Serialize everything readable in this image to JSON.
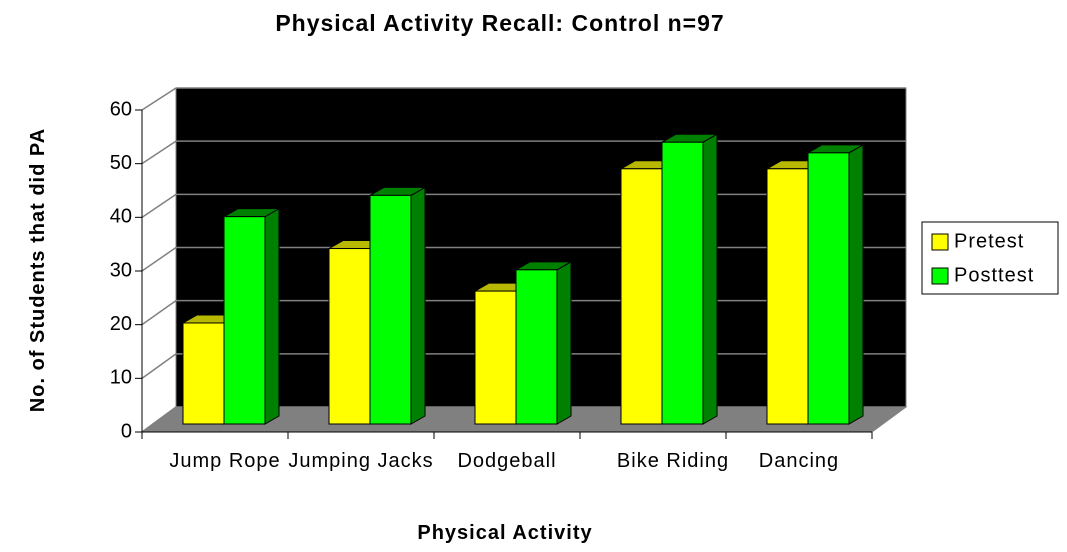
{
  "chart_data": {
    "type": "bar3d",
    "title": "Physical Activity Recall: Control n=97",
    "x_label": "Physical Activity",
    "y_label": "No. of Students that did PA",
    "categories": [
      "Jump Rope",
      "Jumping Jacks",
      "Dodgeball",
      "Bike Riding",
      "Dancing"
    ],
    "series": [
      {
        "name": "Pretest",
        "color": "#ffff00",
        "values": [
          19,
          33,
          25,
          48,
          48
        ]
      },
      {
        "name": "Posttest",
        "color": "#00ff00",
        "values": [
          39,
          43,
          29,
          53,
          51
        ]
      }
    ],
    "ylim": [
      0,
      60
    ],
    "yticks": [
      0,
      10,
      20,
      30,
      40,
      50,
      60
    ],
    "grid": true,
    "legend": "right"
  }
}
